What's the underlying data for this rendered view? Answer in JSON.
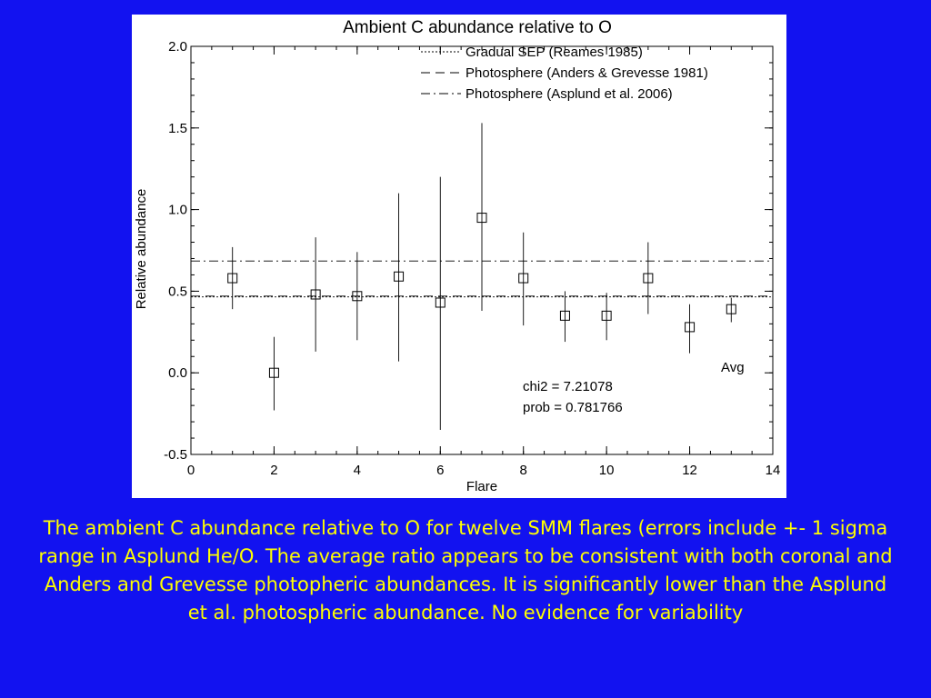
{
  "chart_data": {
    "type": "scatter",
    "title": "Ambient C  abundance relative to O",
    "xlabel": "Flare",
    "ylabel": "Relative abundance",
    "xlim": [
      0,
      14
    ],
    "ylim": [
      -0.5,
      2.0
    ],
    "xticks": [
      0,
      2,
      4,
      6,
      8,
      10,
      12,
      14
    ],
    "yticks": [
      -0.5,
      0.0,
      0.5,
      1.0,
      1.5,
      2.0
    ],
    "xtick_labels": [
      "0",
      "2",
      "4",
      "6",
      "8",
      "10",
      "12",
      "14"
    ],
    "ytick_labels": [
      "-0.5",
      "0.0",
      "0.5",
      "1.0",
      "1.5",
      "2.0"
    ],
    "grid": false,
    "legend_position": "top-right",
    "points": [
      {
        "x": 1,
        "y": 0.58,
        "low": 0.39,
        "high": 0.77
      },
      {
        "x": 2,
        "y": 0.0,
        "low": -0.23,
        "high": 0.22
      },
      {
        "x": 3,
        "y": 0.48,
        "low": 0.13,
        "high": 0.83
      },
      {
        "x": 4,
        "y": 0.47,
        "low": 0.2,
        "high": 0.74
      },
      {
        "x": 5,
        "y": 0.59,
        "low": 0.07,
        "high": 1.1
      },
      {
        "x": 6,
        "y": 0.43,
        "low": -0.35,
        "high": 1.2
      },
      {
        "x": 7,
        "y": 0.95,
        "low": 0.38,
        "high": 1.53
      },
      {
        "x": 8,
        "y": 0.58,
        "low": 0.29,
        "high": 0.86
      },
      {
        "x": 9,
        "y": 0.35,
        "low": 0.19,
        "high": 0.5
      },
      {
        "x": 10,
        "y": 0.35,
        "low": 0.2,
        "high": 0.49
      },
      {
        "x": 11,
        "y": 0.58,
        "low": 0.36,
        "high": 0.8
      },
      {
        "x": 12,
        "y": 0.28,
        "low": 0.12,
        "high": 0.42
      },
      {
        "x": 13,
        "y": 0.39,
        "low": 0.31,
        "high": 0.46
      }
    ],
    "reference_lines": [
      {
        "name": "Gradual SEP (Reames 1985)",
        "y": 0.465,
        "style": "dotted"
      },
      {
        "name": "Photosphere (Anders & Grevesse  1981)",
        "y": 0.47,
        "style": "dashed"
      },
      {
        "name": "Photosphere (Asplund et al. 2006)",
        "y": 0.685,
        "style": "dashdot"
      }
    ],
    "annotations": {
      "avg_label": "Avg",
      "chi2": "chi2 = 7.21078",
      "prob": "prob = 0.781766"
    }
  },
  "caption": "The ambient C abundance relative to O for twelve SMM flares (errors include +- 1 sigma range in Asplund He/O.  The average ratio appears to be consistent with both coronal and Anders and Grevesse photopheric abundances. It is  significantly lower than the  Asplund et al. photospheric abundance.  No evidence for variability"
}
